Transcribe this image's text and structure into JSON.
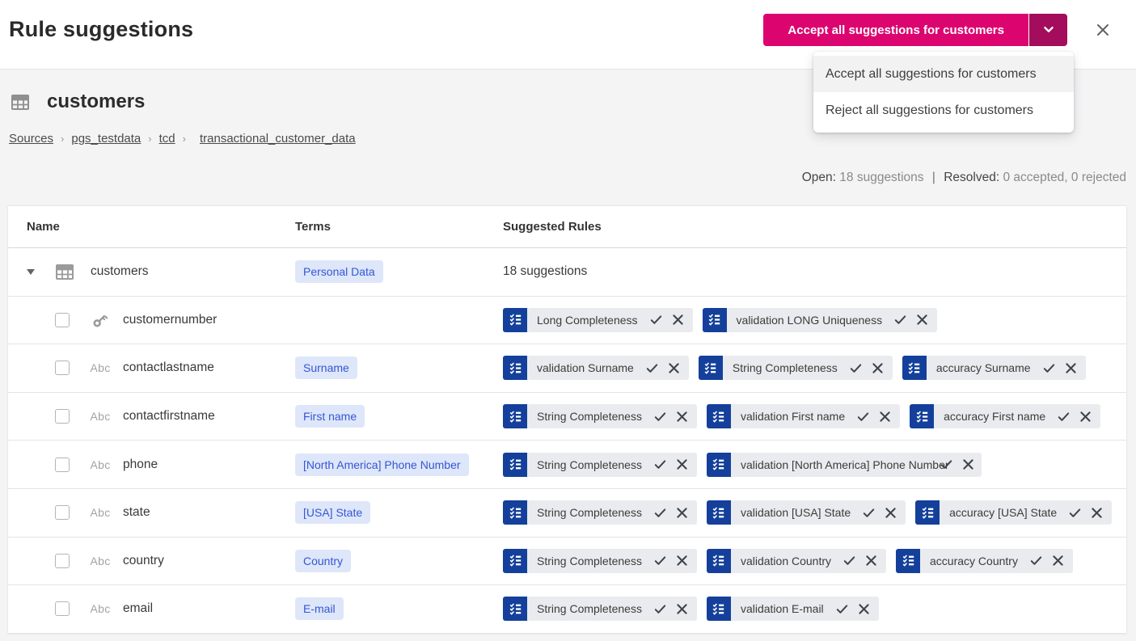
{
  "header": {
    "title": "Rule suggestions",
    "primary_action": "Accept all suggestions for customers"
  },
  "dropdown_menu": {
    "items": [
      "Accept all suggestions for customers",
      "Reject all suggestions for customers"
    ]
  },
  "entity": {
    "name": "customers",
    "breadcrumb": [
      "Sources",
      "pgs_testdata",
      "tcd",
      "transactional_customer_data"
    ]
  },
  "status": {
    "open_label": "Open:",
    "open_value": "18 suggestions",
    "separator": "|",
    "resolved_label": "Resolved:",
    "resolved_value": "0 accepted, 0 rejected"
  },
  "table": {
    "columns": [
      "Name",
      "Terms",
      "Suggested Rules"
    ],
    "rows": [
      {
        "kind": "table",
        "icon": "table-icon",
        "name": "customers",
        "terms": [
          "Personal Data"
        ],
        "suggestions_summary": "18 suggestions"
      },
      {
        "kind": "column",
        "icon": "key-icon",
        "name": "customernumber",
        "terms": [],
        "rules": [
          {
            "label": "Long Completeness"
          },
          {
            "label": "validation LONG Uniqueness"
          }
        ]
      },
      {
        "kind": "column",
        "icon": "abc-icon",
        "name": "contactlastname",
        "terms": [
          "Surname"
        ],
        "rules": [
          {
            "label": "validation Surname"
          },
          {
            "label": "String Completeness"
          },
          {
            "label": "accuracy Surname"
          }
        ]
      },
      {
        "kind": "column",
        "icon": "abc-icon",
        "name": "contactfirstname",
        "terms": [
          "First name"
        ],
        "rules": [
          {
            "label": "String Completeness"
          },
          {
            "label": "validation First name"
          },
          {
            "label": "accuracy First name"
          }
        ]
      },
      {
        "kind": "column",
        "icon": "abc-icon",
        "name": "phone",
        "terms": [
          "[North America] Phone Number"
        ],
        "rules": [
          {
            "label": "String Completeness"
          },
          {
            "label": "validation [North America] Phone Number",
            "truncated": true
          }
        ]
      },
      {
        "kind": "column",
        "icon": "abc-icon",
        "name": "state",
        "terms": [
          "[USA] State"
        ],
        "rules": [
          {
            "label": "String Completeness"
          },
          {
            "label": "validation [USA] State"
          },
          {
            "label": "accuracy [USA] State"
          }
        ]
      },
      {
        "kind": "column",
        "icon": "abc-icon",
        "name": "country",
        "terms": [
          "Country"
        ],
        "rules": [
          {
            "label": "String Completeness"
          },
          {
            "label": "validation Country"
          },
          {
            "label": "accuracy Country"
          }
        ]
      },
      {
        "kind": "column",
        "icon": "abc-icon",
        "name": "email",
        "terms": [
          "E-mail"
        ],
        "rules": [
          {
            "label": "String Completeness"
          },
          {
            "label": "validation E-mail"
          }
        ]
      }
    ]
  },
  "icons": {
    "chip_icon": "rule-checklist-icon",
    "accept": "check-icon",
    "reject": "x-icon"
  },
  "colors": {
    "accent_primary": "#dc0570",
    "accent_dark": "#a30d5c",
    "rule_icon_blue": "#14409b",
    "term_chip_bg": "#dee6f9",
    "term_chip_text": "#3457d5",
    "chip_bg": "#e9ebee",
    "page_bg": "#f4f4f5"
  }
}
